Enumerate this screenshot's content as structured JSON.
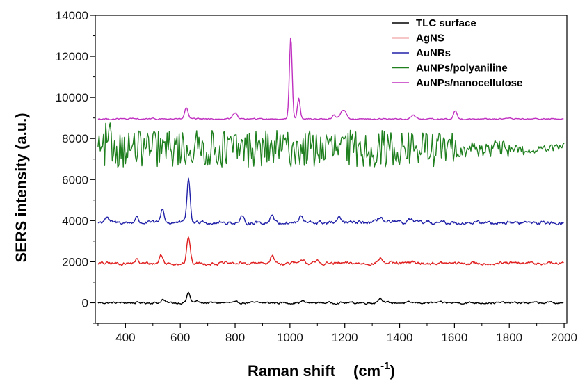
{
  "chart_data": {
    "type": "line",
    "xlabel": "Raman shift",
    "xlabel_unit_base": "(cm",
    "xlabel_unit_exp": "-1",
    "xlabel_unit_close": ")",
    "ylabel": "SERS intensity (a.u.)",
    "xlim": [
      290,
      2010
    ],
    "ylim": [
      -1000,
      14000
    ],
    "x_ticks": [
      400,
      600,
      800,
      1000,
      1200,
      1400,
      1600,
      1800,
      2000
    ],
    "x_tick_labels": [
      "400",
      "600",
      "800",
      "1000",
      "1200",
      "1400",
      "1600",
      "1800",
      "2000"
    ],
    "y_ticks": [
      0,
      2000,
      4000,
      6000,
      8000,
      10000,
      12000,
      14000
    ],
    "y_tick_labels": [
      "0",
      "2000",
      "4000",
      "6000",
      "8000",
      "10000",
      "12000",
      "14000"
    ],
    "grid": false,
    "legend_position": "top-right",
    "series": [
      {
        "name": "TLC surface",
        "color": "#000000",
        "baseline": 0,
        "noise": 40,
        "peaks": [
          [
            536,
            160,
            6
          ],
          [
            630,
            500,
            6
          ],
          [
            660,
            80,
            6
          ],
          [
            1045,
            80,
            6
          ],
          [
            1330,
            240,
            8
          ]
        ]
      },
      {
        "name": "AgNS",
        "color": "#e02020",
        "baseline": 1920,
        "noise": 60,
        "peaks": [
          [
            440,
            180,
            6
          ],
          [
            530,
            420,
            6
          ],
          [
            630,
            1300,
            6
          ],
          [
            935,
            380,
            7
          ],
          [
            1050,
            180,
            7
          ],
          [
            1100,
            100,
            6
          ],
          [
            1330,
            260,
            8
          ],
          [
            1450,
            80,
            8
          ]
        ]
      },
      {
        "name": "AuNRs",
        "color": "#2020a8",
        "baseline": 3900,
        "noise": 70,
        "peaks": [
          [
            330,
            250,
            8
          ],
          [
            440,
            280,
            6
          ],
          [
            535,
            700,
            6
          ],
          [
            630,
            2100,
            6
          ],
          [
            680,
            150,
            6
          ],
          [
            825,
            250,
            6
          ],
          [
            935,
            400,
            7
          ],
          [
            1040,
            300,
            7
          ],
          [
            1180,
            200,
            7
          ],
          [
            1330,
            300,
            8
          ],
          [
            1440,
            150,
            8
          ]
        ]
      },
      {
        "name": "AuNPs/polyaniline",
        "color": "#208020",
        "baseline": 7500,
        "noise": 900,
        "peaks": []
      },
      {
        "name": "AuNPs/nanocellulose",
        "color": "#c030c0",
        "baseline": 8950,
        "noise": 25,
        "peaks": [
          [
            622,
            550,
            6
          ],
          [
            800,
            300,
            8
          ],
          [
            1003,
            4050,
            5
          ],
          [
            1032,
            1000,
            5
          ],
          [
            1160,
            200,
            6
          ],
          [
            1195,
            450,
            10
          ],
          [
            1450,
            180,
            8
          ],
          [
            1603,
            400,
            6
          ]
        ]
      }
    ]
  }
}
